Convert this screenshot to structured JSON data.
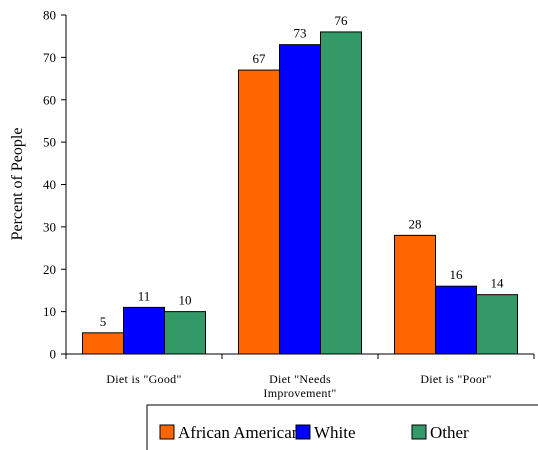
{
  "chart_data": {
    "type": "bar",
    "categories": [
      [
        "Diet is \"Good\""
      ],
      [
        "Diet \"Needs",
        "Improvement\""
      ],
      [
        "Diet is \"Poor\""
      ]
    ],
    "series": [
      {
        "name": "African American",
        "color": "#ff6600",
        "values": [
          5,
          67,
          28
        ]
      },
      {
        "name": "White",
        "color": "#0000ff",
        "values": [
          11,
          73,
          16
        ]
      },
      {
        "name": "Other",
        "color": "#339966",
        "values": [
          10,
          76,
          14
        ]
      }
    ],
    "ylabel": "Percent of People",
    "ylim": [
      0,
      80
    ],
    "yticks": [
      0,
      10,
      20,
      30,
      40,
      50,
      60,
      70,
      80
    ],
    "grid": false,
    "legend_position": "bottom"
  }
}
